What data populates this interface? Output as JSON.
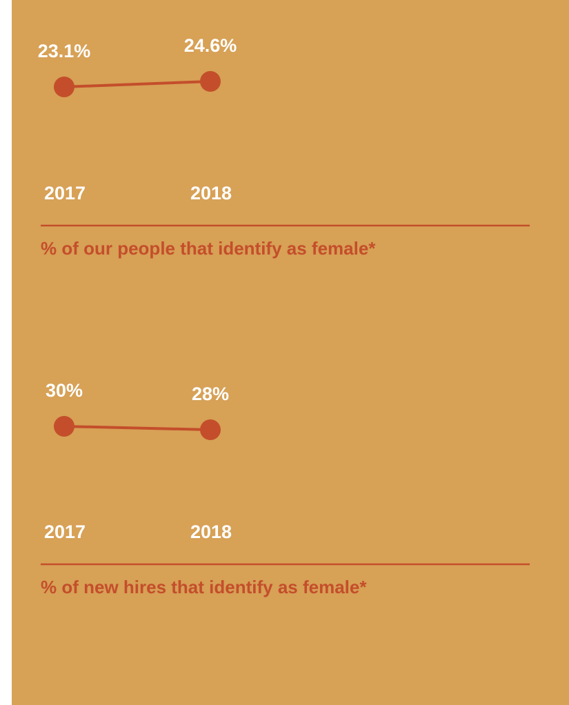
{
  "chart_data": [
    {
      "type": "line",
      "title": "% of our people that identify as female*",
      "categories": [
        "2017",
        "2018"
      ],
      "values": [
        23.1,
        24.6
      ],
      "value_labels": [
        "23.1%",
        "24.6%"
      ],
      "color": "#c44e2b",
      "ylim": [
        0,
        40
      ]
    },
    {
      "type": "line",
      "title": "% of new hires that identify as female*",
      "categories": [
        "2017",
        "2018"
      ],
      "values": [
        30,
        28
      ],
      "value_labels": [
        "30%",
        "28%"
      ],
      "color": "#c44e2b",
      "ylim": [
        0,
        40
      ]
    }
  ]
}
